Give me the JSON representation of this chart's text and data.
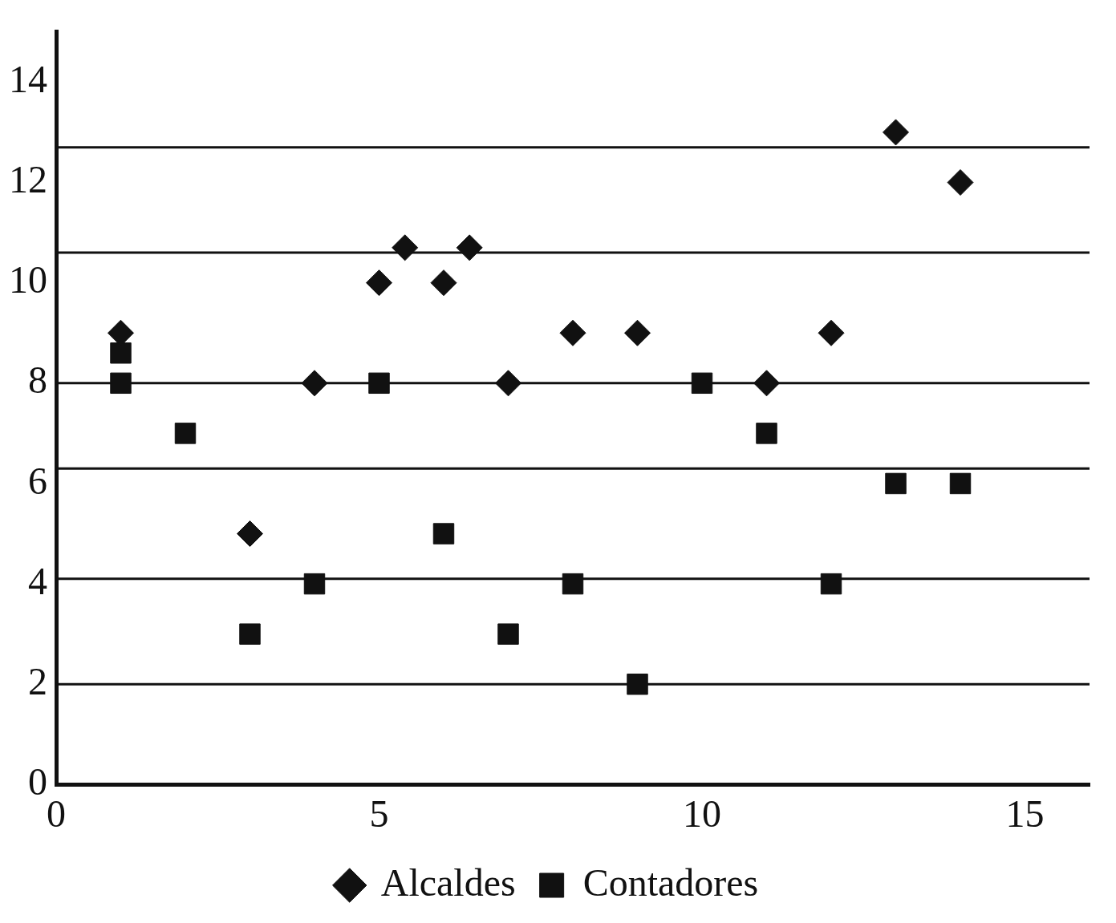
{
  "chart_data": {
    "type": "scatter",
    "xlim": [
      0,
      16
    ],
    "xticks": [
      0,
      5,
      10,
      15
    ],
    "ylim": [
      0,
      15
    ],
    "yticks": [
      0,
      2,
      4,
      6,
      8,
      10,
      12,
      14
    ],
    "grid": false,
    "legend": "bottom",
    "series": [
      {
        "name": "Alcaldes",
        "color": "#111111",
        "marker": "diamond",
        "x": [
          1,
          3,
          4,
          5,
          5.4,
          6,
          6.4,
          7,
          8,
          9,
          11,
          12,
          13,
          14
        ],
        "values": [
          9,
          5,
          8,
          10,
          10.7,
          10,
          10.7,
          8,
          9,
          9,
          8,
          9,
          13,
          12
        ]
      },
      {
        "name": "Contadores",
        "color": "#111111",
        "marker": "square",
        "x": [
          1,
          1,
          2,
          3,
          4,
          5,
          6,
          7,
          8,
          9,
          10,
          11,
          12,
          13,
          14
        ],
        "values": [
          8,
          8.6,
          7,
          3,
          4,
          8,
          5,
          3,
          4,
          2,
          8,
          7,
          4,
          6,
          6
        ]
      }
    ],
    "ref_lines": [
      {
        "axis": "y",
        "value": 2,
        "color": "#111111"
      },
      {
        "axis": "y",
        "value": 4.1,
        "color": "#111111"
      },
      {
        "axis": "y",
        "value": 6.3,
        "color": "#111111"
      },
      {
        "axis": "y",
        "value": 8,
        "color": "#111111"
      },
      {
        "axis": "y",
        "value": 10.6,
        "color": "#111111"
      },
      {
        "axis": "y",
        "value": 12.7,
        "color": "#111111"
      }
    ]
  }
}
